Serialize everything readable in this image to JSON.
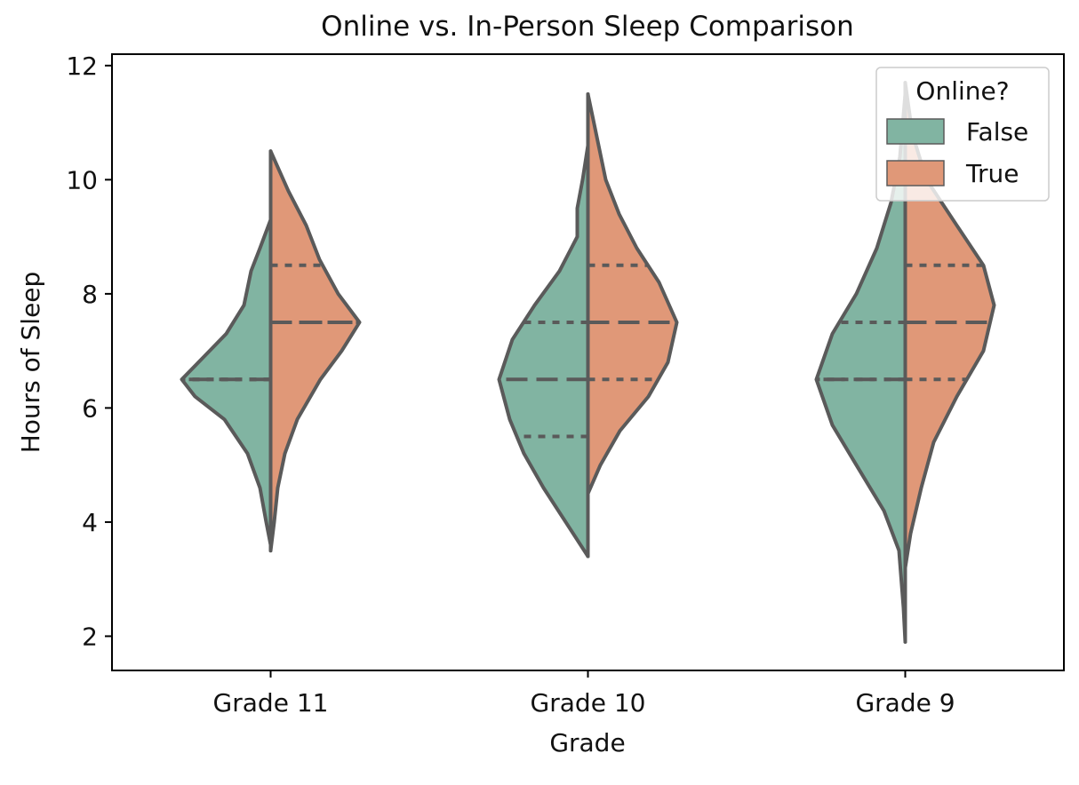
{
  "chart_data": {
    "type": "violin",
    "title": "Online vs. In-Person Sleep Comparison",
    "xlabel": "Grade",
    "ylabel": "Hours of Sleep",
    "categories": [
      "Grade 11",
      "Grade 10",
      "Grade 9"
    ],
    "ylim": [
      1.4,
      12.2
    ],
    "yticks": [
      2,
      4,
      6,
      8,
      10,
      12
    ],
    "split": true,
    "inner": "quartile",
    "grid": false,
    "legend": {
      "title": "Online?",
      "position": "top-right",
      "entries": [
        {
          "label": "False",
          "color": "#81b4a2"
        },
        {
          "label": "True",
          "color": "#e09878"
        }
      ]
    },
    "colors": {
      "outline": "#5a5a5a",
      "false": "#81b4a2",
      "true": "#e09878"
    },
    "series": [
      {
        "name": "False",
        "violins": [
          {
            "category": "Grade 11",
            "range": [
              3.6,
              9.3
            ],
            "quartiles": {
              "q1": 6.5,
              "median": 6.5,
              "q3": 6.5
            },
            "density_profile": [
              [
                3.6,
                0.0
              ],
              [
                4.0,
                0.05
              ],
              [
                4.6,
                0.12
              ],
              [
                5.2,
                0.26
              ],
              [
                5.8,
                0.52
              ],
              [
                6.2,
                0.85
              ],
              [
                6.5,
                1.0
              ],
              [
                6.9,
                0.75
              ],
              [
                7.3,
                0.5
              ],
              [
                7.8,
                0.3
              ],
              [
                8.4,
                0.22
              ],
              [
                8.8,
                0.12
              ],
              [
                9.3,
                0.0
              ]
            ]
          },
          {
            "category": "Grade 10",
            "range": [
              3.4,
              10.6
            ],
            "quartiles": {
              "q1": 5.5,
              "median": 6.5,
              "q3": 7.5
            },
            "density_profile": [
              [
                3.4,
                0.0
              ],
              [
                4.0,
                0.25
              ],
              [
                4.6,
                0.5
              ],
              [
                5.2,
                0.72
              ],
              [
                5.8,
                0.88
              ],
              [
                6.5,
                1.0
              ],
              [
                7.2,
                0.85
              ],
              [
                7.8,
                0.6
              ],
              [
                8.4,
                0.32
              ],
              [
                9.0,
                0.12
              ],
              [
                9.5,
                0.12
              ],
              [
                10.0,
                0.06
              ],
              [
                10.6,
                0.0
              ]
            ]
          },
          {
            "category": "Grade 9",
            "range": [
              1.9,
              11.5
            ],
            "quartiles": {
              "q1": 6.5,
              "median": 6.5,
              "q3": 7.5
            },
            "density_profile": [
              [
                1.9,
                0.0
              ],
              [
                2.5,
                0.02
              ],
              [
                3.5,
                0.07
              ],
              [
                4.2,
                0.24
              ],
              [
                5.0,
                0.55
              ],
              [
                5.7,
                0.82
              ],
              [
                6.5,
                1.0
              ],
              [
                7.3,
                0.82
              ],
              [
                8.0,
                0.55
              ],
              [
                8.8,
                0.32
              ],
              [
                9.6,
                0.16
              ],
              [
                10.4,
                0.06
              ],
              [
                11.5,
                0.0
              ]
            ]
          }
        ]
      },
      {
        "name": "True",
        "violins": [
          {
            "category": "Grade 11",
            "range": [
              3.5,
              10.5
            ],
            "quartiles": {
              "q1": 7.5,
              "median": 7.5,
              "q3": 8.5
            },
            "density_profile": [
              [
                3.5,
                0.0
              ],
              [
                4.0,
                0.04
              ],
              [
                4.6,
                0.08
              ],
              [
                5.2,
                0.16
              ],
              [
                5.8,
                0.3
              ],
              [
                6.5,
                0.56
              ],
              [
                7.0,
                0.8
              ],
              [
                7.5,
                1.0
              ],
              [
                8.0,
                0.76
              ],
              [
                8.6,
                0.55
              ],
              [
                9.2,
                0.4
              ],
              [
                9.8,
                0.2
              ],
              [
                10.5,
                0.0
              ]
            ]
          },
          {
            "category": "Grade 10",
            "range": [
              4.5,
              11.5
            ],
            "quartiles": {
              "q1": 6.5,
              "median": 7.5,
              "q3": 8.5
            },
            "density_profile": [
              [
                4.5,
                0.0
              ],
              [
                5.0,
                0.14
              ],
              [
                5.6,
                0.36
              ],
              [
                6.2,
                0.68
              ],
              [
                6.8,
                0.9
              ],
              [
                7.5,
                1.0
              ],
              [
                8.2,
                0.8
              ],
              [
                8.8,
                0.55
              ],
              [
                9.4,
                0.35
              ],
              [
                10.0,
                0.2
              ],
              [
                10.6,
                0.12
              ],
              [
                11.5,
                0.0
              ]
            ]
          },
          {
            "category": "Grade 9",
            "range": [
              3.2,
              11.7
            ],
            "quartiles": {
              "q1": 6.5,
              "median": 7.5,
              "q3": 8.5
            },
            "density_profile": [
              [
                3.2,
                0.0
              ],
              [
                3.8,
                0.06
              ],
              [
                4.6,
                0.18
              ],
              [
                5.4,
                0.32
              ],
              [
                6.2,
                0.58
              ],
              [
                7.0,
                0.88
              ],
              [
                7.8,
                1.0
              ],
              [
                8.5,
                0.88
              ],
              [
                9.2,
                0.58
              ],
              [
                10.0,
                0.24
              ],
              [
                10.8,
                0.08
              ],
              [
                11.7,
                0.0
              ]
            ]
          }
        ]
      }
    ]
  }
}
